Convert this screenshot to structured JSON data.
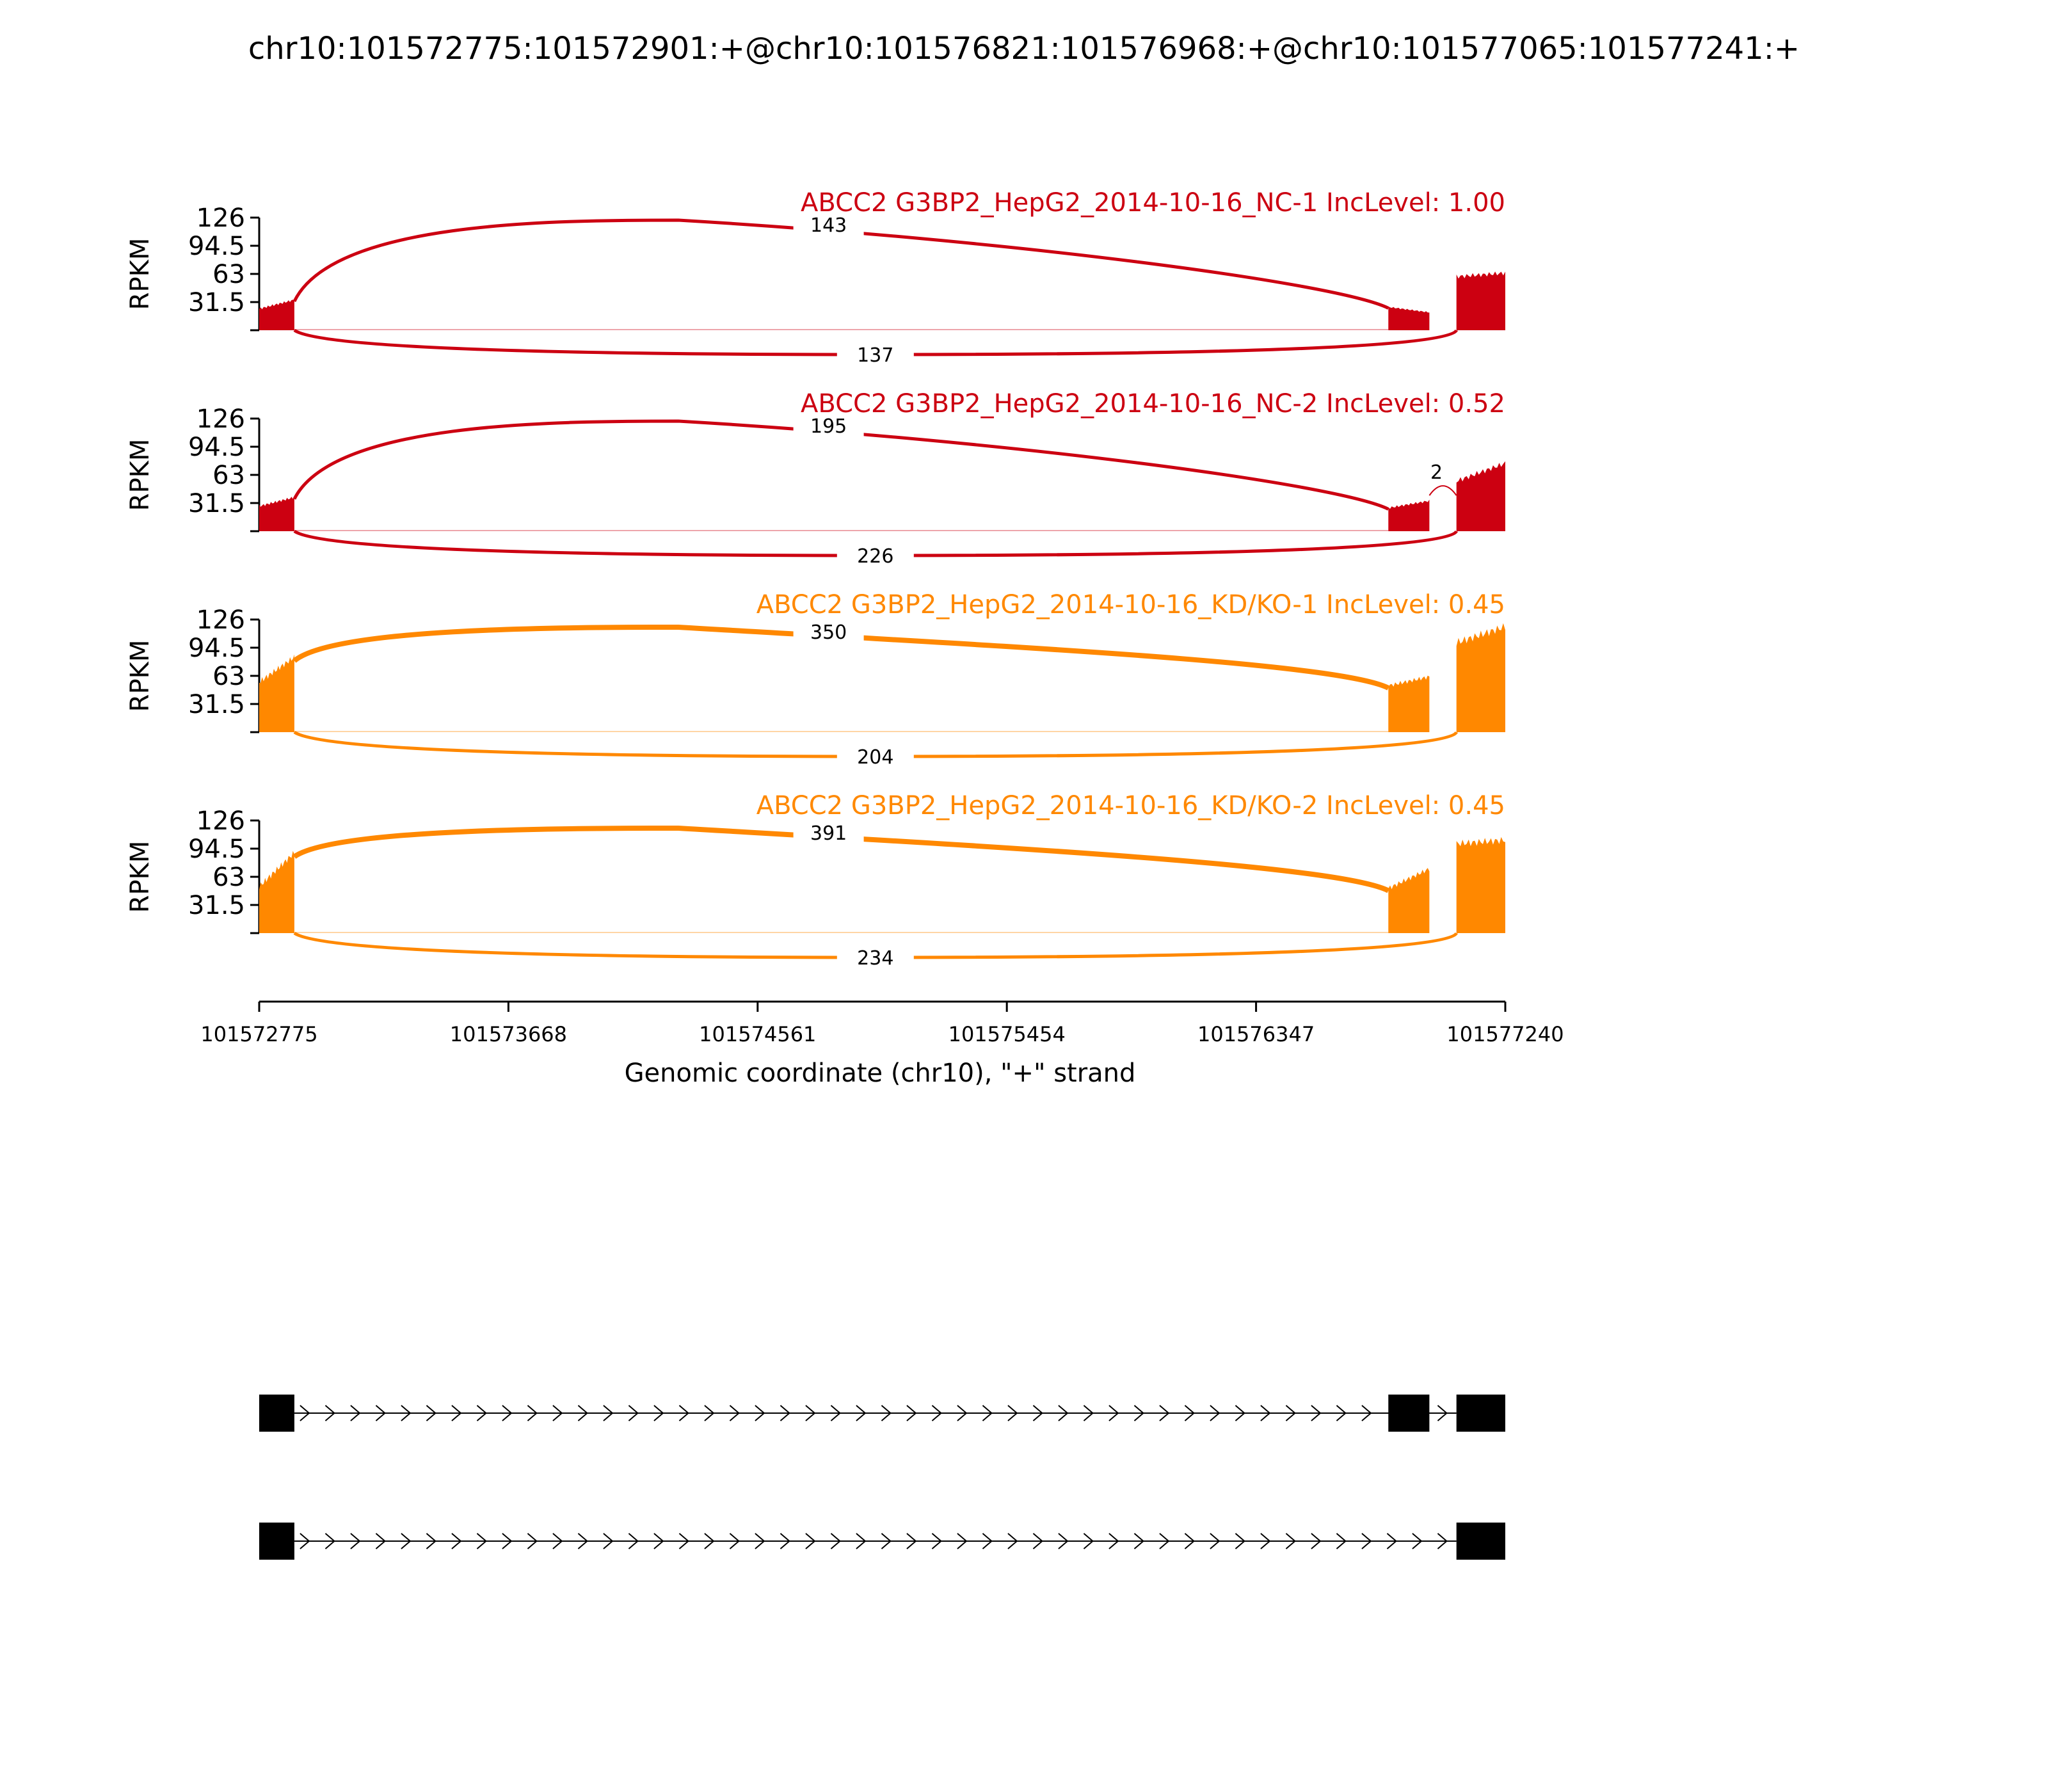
{
  "chart_data": {
    "type": "area",
    "title": "chr10:101572775:101572901:+@chr10:101576821:101576968:+@chr10:101577065:101577241:+",
    "xlabel": "Genomic coordinate (chr10), \"+\" strand",
    "ylabel": "RPKM",
    "xlim": [
      101572775,
      101577240
    ],
    "x_ticks": [
      "101572775",
      "101573668",
      "101574561",
      "101575454",
      "101576347",
      "101577240"
    ],
    "ylim": [
      0,
      126
    ],
    "y_ticks": [
      "126",
      "94.5",
      "63",
      "31.5"
    ],
    "exons": [
      {
        "start": 101572775,
        "end": 101572901
      },
      {
        "start": 101576821,
        "end": 101576968
      },
      {
        "start": 101577065,
        "end": 101577241
      }
    ],
    "colors": {
      "nc": "#cc0011",
      "kd": "#ff8800",
      "gene": "#000000"
    },
    "panels": [
      {
        "label": "ABCC2 G3BP2_HepG2_2014-10-16_NC-1 IncLevel: 1.00",
        "color": "#cc0011",
        "coverage": {
          "exon1": [
            24,
            34
          ],
          "exon2": [
            26,
            20
          ],
          "exon3": [
            60,
            64
          ]
        },
        "junctions": [
          {
            "from": 101572901,
            "to": 101576821,
            "count": "143",
            "side": "above"
          },
          {
            "from": 101572901,
            "to": 101577065,
            "count": "137",
            "side": "below"
          }
        ]
      },
      {
        "label": "ABCC2 G3BP2_HepG2_2014-10-16_NC-2 IncLevel: 0.52",
        "color": "#cc0011",
        "coverage": {
          "exon1": [
            28,
            38
          ],
          "exon2": [
            26,
            34
          ],
          "exon3": [
            56,
            76
          ]
        },
        "junctions": [
          {
            "from": 101572901,
            "to": 101576821,
            "count": "195",
            "side": "above"
          },
          {
            "from": 101572901,
            "to": 101577065,
            "count": "226",
            "side": "below"
          },
          {
            "from": 101576968,
            "to": 101577065,
            "count": "2",
            "side": "above"
          }
        ]
      },
      {
        "label": "ABCC2 G3BP2_HepG2_2014-10-16_KD/KO-1 IncLevel: 0.45",
        "color": "#ff8800",
        "coverage": {
          "exon1": [
            56,
            84
          ],
          "exon2": [
            52,
            62
          ],
          "exon3": [
            100,
            118
          ]
        },
        "junctions": [
          {
            "from": 101572901,
            "to": 101576821,
            "count": "350",
            "side": "above"
          },
          {
            "from": 101572901,
            "to": 101577065,
            "count": "204",
            "side": "below"
          }
        ]
      },
      {
        "label": "ABCC2 G3BP2_HepG2_2014-10-16_KD/KO-2 IncLevel: 0.45",
        "color": "#ff8800",
        "coverage": {
          "exon1": [
            52,
            90
          ],
          "exon2": [
            50,
            72
          ],
          "exon3": [
            100,
            104
          ]
        },
        "junctions": [
          {
            "from": 101572901,
            "to": 101576821,
            "count": "391",
            "side": "above"
          },
          {
            "from": 101572901,
            "to": 101577065,
            "count": "234",
            "side": "below"
          }
        ]
      }
    ],
    "isoforms": [
      {
        "exons": [
          0,
          1,
          2
        ]
      },
      {
        "exons": [
          0,
          2
        ]
      }
    ]
  }
}
